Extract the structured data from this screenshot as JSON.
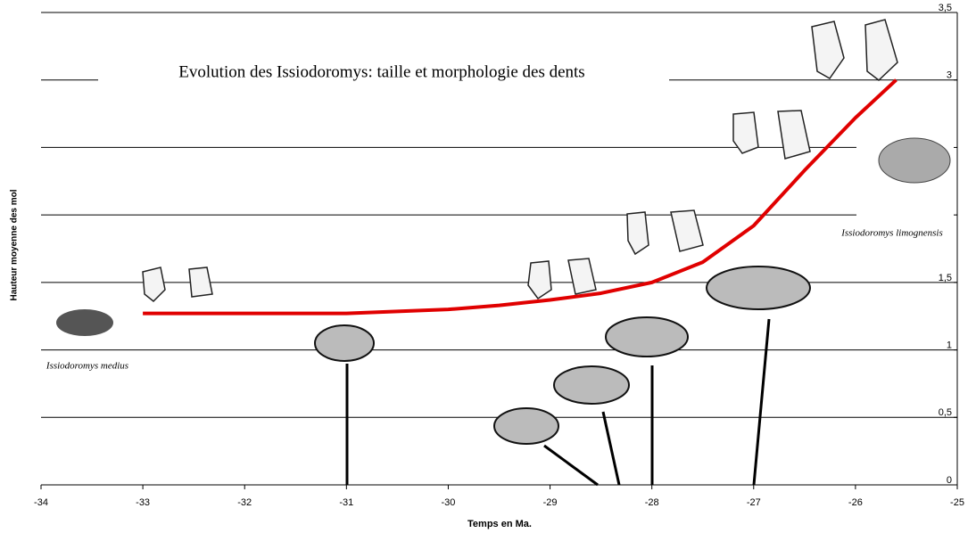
{
  "chart_data": {
    "type": "line",
    "title": "Evolution des Issiodoromys: taille et morphologie des dents",
    "x_label": "Temps en Ma.",
    "y_label": "Hauteur moyenne des mol",
    "annotations": [
      "Issiodoromys medius",
      "Issiodoromys limognensis"
    ],
    "xlim": [
      -34,
      -25
    ],
    "xticks": [
      -34,
      -33,
      -32,
      -31,
      -30,
      -29,
      -28,
      -27,
      -26,
      -25
    ],
    "ylim": [
      0,
      3.5
    ],
    "yticks": [
      {
        "value": 0,
        "label": "0"
      },
      {
        "value": 0.5,
        "label": "0,5"
      },
      {
        "value": 1,
        "label": "1"
      },
      {
        "value": 1.5,
        "label": "1,5"
      },
      {
        "value": 2,
        "label": null
      },
      {
        "value": 2.5,
        "label": null
      },
      {
        "value": 3,
        "label": "3"
      },
      {
        "value": 3.5,
        "label": "3,5"
      }
    ],
    "grid": true,
    "series": [
      {
        "color": "#e00000",
        "x": [
          -33,
          -32,
          -31,
          -30,
          -29.5,
          -29,
          -28.5,
          -28,
          -27.5,
          -27,
          -26.5,
          -26,
          -25.6
        ],
        "values": [
          1.27,
          1.27,
          1.27,
          1.3,
          1.33,
          1.37,
          1.42,
          1.5,
          1.65,
          1.92,
          2.33,
          2.72,
          3.0
        ]
      }
    ]
  }
}
